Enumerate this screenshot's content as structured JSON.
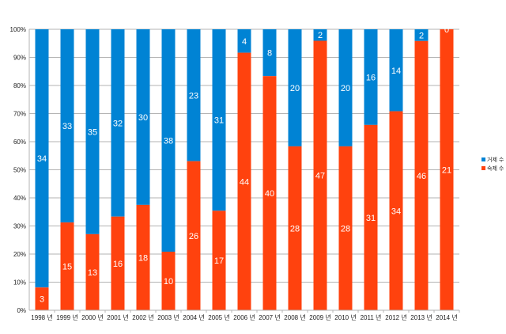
{
  "chart_data": {
    "type": "bar",
    "stacked": "percent",
    "categories": [
      "1998 년",
      "1999 년",
      "2000 년",
      "2001 년",
      "2002 년",
      "2003 년",
      "2004 년",
      "2005 년",
      "2006 년",
      "2007 년",
      "2008 년",
      "2009 년",
      "2010 년",
      "2011 년",
      "2012 년",
      "2013 년",
      "2014 년"
    ],
    "series": [
      {
        "name": "숙제 수",
        "color": "#ff420e",
        "values": [
          3,
          15,
          13,
          16,
          18,
          10,
          26,
          17,
          44,
          40,
          28,
          47,
          28,
          31,
          34,
          46,
          21
        ]
      },
      {
        "name": "거제 수",
        "color": "#0083d4",
        "values": [
          34,
          33,
          35,
          32,
          30,
          38,
          23,
          31,
          4,
          8,
          20,
          2,
          20,
          16,
          14,
          2,
          0
        ]
      }
    ],
    "yticks": [
      "0%",
      "10%",
      "20%",
      "30%",
      "40%",
      "50%",
      "60%",
      "70%",
      "80%",
      "90%",
      "100%"
    ],
    "ylim": [
      0,
      100
    ],
    "grid": true,
    "legend": "right",
    "title": "",
    "xlabel": "",
    "ylabel": ""
  }
}
